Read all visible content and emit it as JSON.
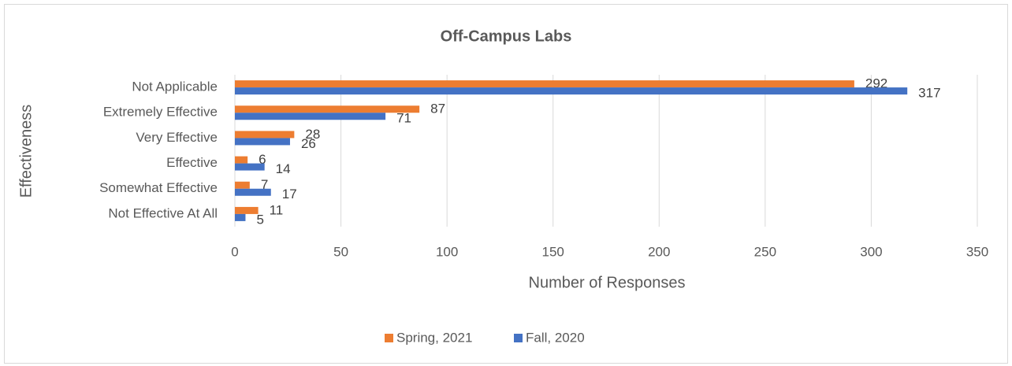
{
  "chart_data": {
    "type": "bar",
    "orientation": "horizontal",
    "title": "Off-Campus Labs",
    "x_label": "Number of Responses",
    "y_label": "Effectiveness",
    "categories": [
      "Not Applicable",
      "Extremely Effective",
      "Very Effective",
      "Effective",
      "Somewhat Effective",
      "Not Effective At All"
    ],
    "series": [
      {
        "name": "Spring, 2021",
        "color": "#ed7d31",
        "values": [
          292,
          87,
          28,
          6,
          7,
          11
        ]
      },
      {
        "name": "Fall, 2020",
        "color": "#4472c4",
        "values": [
          317,
          71,
          26,
          14,
          17,
          5
        ]
      }
    ],
    "xlim": [
      0,
      350
    ],
    "xticks": [
      0,
      50,
      100,
      150,
      200,
      250,
      300,
      350
    ],
    "grid": true,
    "legend": "bottom"
  }
}
